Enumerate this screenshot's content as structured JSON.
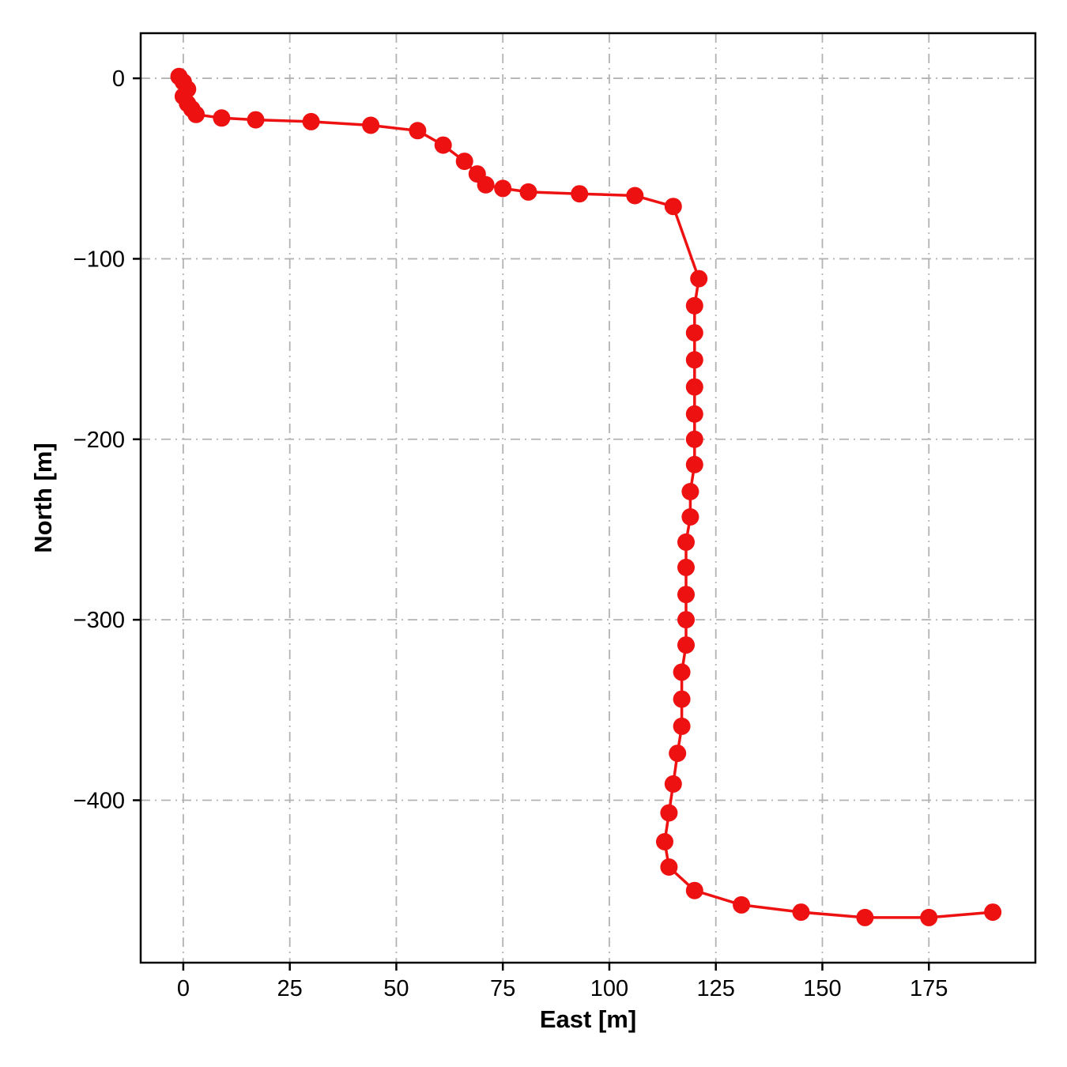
{
  "chart_data": {
    "type": "line",
    "title": "",
    "xlabel": "East [m]",
    "ylabel": "North [m]",
    "xlim": [
      -10,
      200
    ],
    "ylim": [
      -490,
      25
    ],
    "xticks": [
      0,
      25,
      50,
      75,
      100,
      125,
      150,
      175
    ],
    "yticks": [
      0,
      -100,
      -200,
      -300,
      -400
    ],
    "grid": "dash-dot",
    "grid_color": "#b3b3b3",
    "spine_color": "#000000",
    "legend": "none",
    "series": [
      {
        "name": "trajectory",
        "color": "#ee1111",
        "marker": "circle",
        "points": [
          [
            -1,
            1
          ],
          [
            0,
            -2
          ],
          [
            1,
            -6
          ],
          [
            0,
            -10
          ],
          [
            1,
            -14
          ],
          [
            2,
            -17
          ],
          [
            3,
            -20
          ],
          [
            9,
            -22
          ],
          [
            17,
            -23
          ],
          [
            30,
            -24
          ],
          [
            44,
            -26
          ],
          [
            55,
            -29
          ],
          [
            61,
            -37
          ],
          [
            66,
            -46
          ],
          [
            69,
            -53
          ],
          [
            71,
            -59
          ],
          [
            75,
            -61
          ],
          [
            81,
            -63
          ],
          [
            93,
            -64
          ],
          [
            106,
            -65
          ],
          [
            115,
            -71
          ],
          [
            121,
            -111
          ],
          [
            120,
            -126
          ],
          [
            120,
            -141
          ],
          [
            120,
            -156
          ],
          [
            120,
            -171
          ],
          [
            120,
            -186
          ],
          [
            120,
            -200
          ],
          [
            120,
            -214
          ],
          [
            119,
            -229
          ],
          [
            119,
            -243
          ],
          [
            118,
            -257
          ],
          [
            118,
            -271
          ],
          [
            118,
            -286
          ],
          [
            118,
            -300
          ],
          [
            118,
            -314
          ],
          [
            117,
            -329
          ],
          [
            117,
            -344
          ],
          [
            117,
            -359
          ],
          [
            116,
            -374
          ],
          [
            115,
            -391
          ],
          [
            114,
            -407
          ],
          [
            113,
            -423
          ],
          [
            114,
            -437
          ],
          [
            120,
            -450
          ],
          [
            131,
            -458
          ],
          [
            145,
            -462
          ],
          [
            160,
            -465
          ],
          [
            175,
            -465
          ],
          [
            190,
            -462
          ]
        ]
      }
    ]
  }
}
